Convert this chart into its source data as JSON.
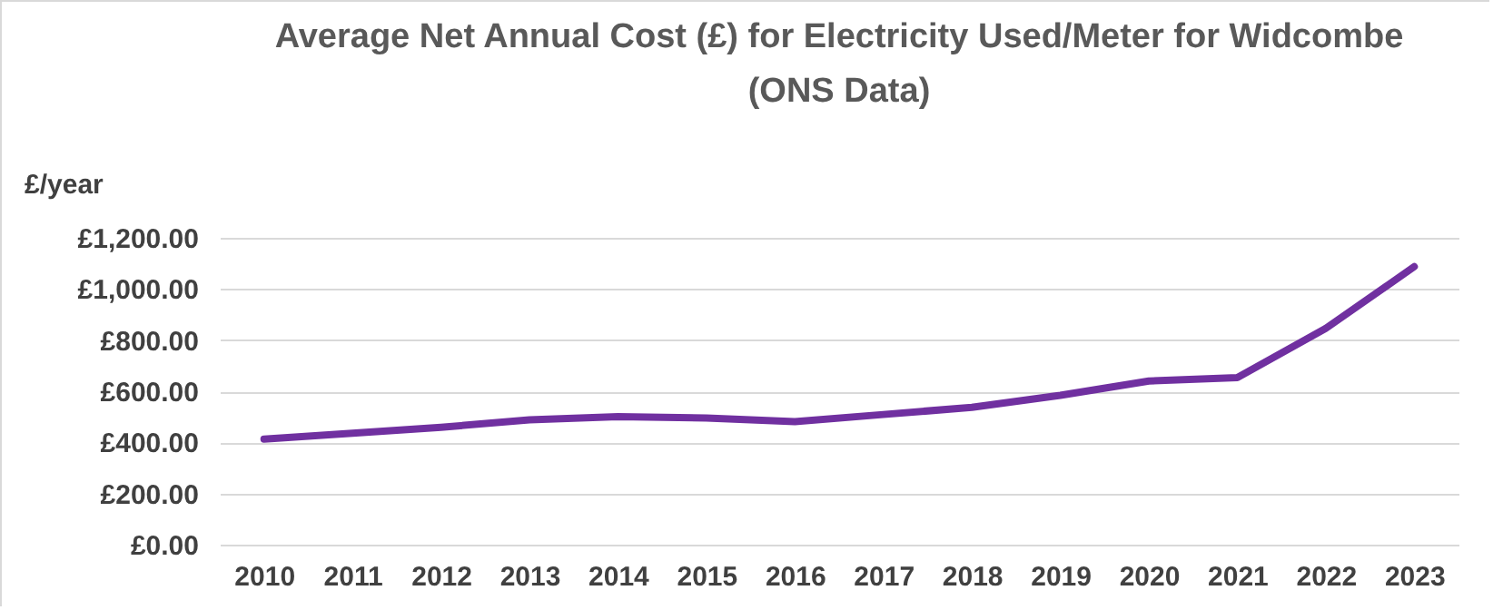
{
  "chart_data": {
    "type": "line",
    "title": "Average Net Annual Cost (£) for Electricity Used/Meter for Widcombe (ONS Data)",
    "ylabel": "£/year",
    "categories": [
      "2010",
      "2011",
      "2012",
      "2013",
      "2014",
      "2015",
      "2016",
      "2017",
      "2018",
      "2019",
      "2020",
      "2021",
      "2022",
      "2023"
    ],
    "series": [
      {
        "color": "#7030a0",
        "values": [
          413,
          436,
          459,
          488,
          501,
          495,
          481,
          509,
          537,
          584,
          640,
          653,
          846,
          1087
        ]
      }
    ],
    "ylim": [
      0,
      1200
    ],
    "yticks": [
      {
        "value": 0,
        "label": "£0.00"
      },
      {
        "value": 200,
        "label": "£200.00"
      },
      {
        "value": 400,
        "label": "£400.00"
      },
      {
        "value": 600,
        "label": "£600.00"
      },
      {
        "value": 800,
        "label": "£800.00"
      },
      {
        "value": 1000,
        "label": "£1,000.00"
      },
      {
        "value": 1200,
        "label": "£1,200.00"
      }
    ],
    "grid": "y",
    "marker": "none",
    "line_style": "solid"
  }
}
